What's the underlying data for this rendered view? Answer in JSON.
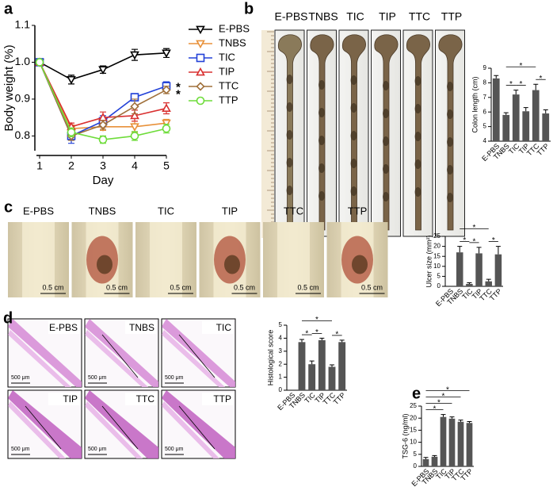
{
  "chart_data": [
    {
      "type": "line",
      "panel": "a",
      "y_label": "Body weight (%)",
      "x_label": "Day",
      "x": [
        1,
        2,
        3,
        4,
        5
      ],
      "xlim": [
        1,
        5
      ],
      "xticks": [
        1,
        2,
        3,
        4,
        5
      ],
      "ylim": [
        0.76,
        1.1
      ],
      "yticks": [
        0.8,
        0.9,
        {
          "value": 1,
          "label": "1.0"
        },
        1.1
      ],
      "series": [
        {
          "name": "E-PBS",
          "color": "#000000",
          "marker": "triangle-down",
          "values": [
            1.0,
            0.953,
            0.98,
            1.02,
            1.025
          ],
          "errors": [
            0,
            0.012,
            0.01,
            0.015,
            0.012
          ]
        },
        {
          "name": "TNBS",
          "color": "#e8913a",
          "marker": "triangle-down",
          "values": [
            1.0,
            0.82,
            0.825,
            0.825,
            0.835
          ],
          "errors": [
            0,
            0.01,
            0.01,
            0.015,
            0.01
          ]
        },
        {
          "name": "TIC",
          "color": "#2342d8",
          "marker": "square",
          "values": [
            1.0,
            0.8,
            0.84,
            0.905,
            0.935
          ],
          "errors": [
            0,
            0.02,
            0.015,
            0.01,
            0.012
          ]
        },
        {
          "name": "TIP",
          "color": "#d93030",
          "marker": "triangle-up",
          "values": [
            1.0,
            0.825,
            0.85,
            0.855,
            0.875
          ],
          "errors": [
            0,
            0.01,
            0.015,
            0.015,
            0.015
          ]
        },
        {
          "name": "TTC",
          "color": "#a0703a",
          "marker": "diamond",
          "values": [
            1.0,
            0.8,
            0.83,
            0.88,
            0.925
          ],
          "errors": [
            0,
            0.012,
            0.012,
            0.02,
            0.01
          ]
        },
        {
          "name": "TTP",
          "color": "#6edc3a",
          "marker": "circle",
          "values": [
            1.0,
            0.81,
            0.79,
            0.8,
            0.82
          ],
          "errors": [
            0,
            0.012,
            0.01,
            0.012,
            0.012
          ]
        }
      ],
      "annotations": [
        {
          "text": "*",
          "color": "#2342d8"
        },
        {
          "text": "*",
          "color": "#a0703a"
        }
      ]
    },
    {
      "type": "bar",
      "panel": "b",
      "y_label": "Colon length (cm)",
      "color": "#555555",
      "categories": [
        "E-PBS",
        "TNBS",
        "TIC",
        "TIP",
        "TTC",
        "TTP"
      ],
      "values": [
        8.3,
        5.8,
        7.2,
        6.05,
        7.5,
        5.9
      ],
      "errors": [
        0.2,
        0.15,
        0.3,
        0.25,
        0.4,
        0.25
      ],
      "ylim": [
        4,
        9
      ],
      "yticks": [
        4,
        5,
        6,
        7,
        8,
        9
      ],
      "significance": [
        {
          "from": 1,
          "to": 2,
          "label": "*"
        },
        {
          "from": 2,
          "to": 3,
          "label": "*"
        },
        {
          "from": 1,
          "to": 4,
          "label": "*"
        },
        {
          "from": 4,
          "to": 5,
          "label": "*"
        }
      ]
    },
    {
      "type": "bar",
      "panel": "c",
      "y_label": "Ulcer size (mm²)",
      "color": "#555555",
      "categories": [
        "E-PBS",
        "TNBS",
        "TIC",
        "TIP",
        "TTC",
        "TTP"
      ],
      "values": [
        0,
        17,
        1.2,
        16.5,
        2.5,
        16
      ],
      "errors": [
        0,
        3,
        0.6,
        3,
        1,
        4
      ],
      "ylim": [
        0,
        25
      ],
      "yticks": [
        0,
        5,
        10,
        15,
        20,
        25
      ],
      "significance": [
        {
          "from": 1,
          "to": 2,
          "label": "*"
        },
        {
          "from": 2,
          "to": 3,
          "label": "*"
        },
        {
          "from": 1,
          "to": 4,
          "label": "*"
        },
        {
          "from": 4,
          "to": 5,
          "label": "*"
        }
      ]
    },
    {
      "type": "bar",
      "panel": "d",
      "y_label": "Histological score",
      "color": "#555555",
      "categories": [
        "E-PBS",
        "TNBS",
        "TIC",
        "TIP",
        "TTC",
        "TTP"
      ],
      "values": [
        0,
        3.7,
        2.0,
        3.85,
        1.8,
        3.7
      ],
      "errors": [
        0,
        0.2,
        0.25,
        0.15,
        0.15,
        0.15
      ],
      "ylim": [
        0,
        5
      ],
      "yticks": [
        0,
        1,
        2,
        3,
        4,
        5
      ],
      "significance": [
        {
          "from": 1,
          "to": 2,
          "label": "*"
        },
        {
          "from": 2,
          "to": 3,
          "label": "*"
        },
        {
          "from": 1,
          "to": 4,
          "label": "*"
        },
        {
          "from": 4,
          "to": 5,
          "label": "*"
        }
      ]
    },
    {
      "type": "bar",
      "panel": "e",
      "y_label": "TSG-6 (ng/ml)",
      "color": "#555555",
      "categories": [
        "E-PBS",
        "TNBS",
        "TIC",
        "TIP",
        "TTC",
        "TTP"
      ],
      "values": [
        3,
        4,
        20.5,
        19.8,
        18.5,
        18
      ],
      "errors": [
        0.7,
        0.5,
        1,
        0.7,
        0.7,
        0.6
      ],
      "ylim": [
        0,
        25
      ],
      "yticks": [
        0,
        5,
        10,
        15,
        20,
        25
      ],
      "significance": [
        {
          "from": 0,
          "to": 2,
          "label": "*"
        },
        {
          "from": 0,
          "to": 3,
          "label": "*"
        },
        {
          "from": 0,
          "to": 4,
          "label": "*"
        },
        {
          "from": 0,
          "to": 5,
          "label": "*"
        }
      ]
    }
  ],
  "figure": {
    "b_photos": {
      "labels": [
        "E-PBS",
        "TNBS",
        "TIC",
        "TIP",
        "TTC",
        "TTP"
      ]
    },
    "c_photos": {
      "labels": [
        "E-PBS",
        "TNBS",
        "TIC",
        "TIP",
        "TTC",
        "TTP"
      ],
      "scale": "0.5 cm"
    },
    "d_images": {
      "labels": [
        "E-PBS",
        "TNBS",
        "TIC",
        "TIP",
        "TTC",
        "TTP"
      ],
      "scale": "500 μm"
    }
  }
}
